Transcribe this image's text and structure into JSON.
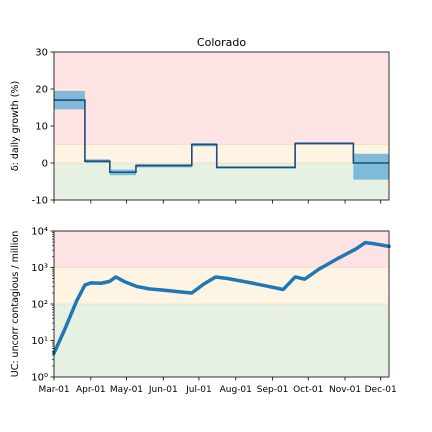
{
  "chart_data": [
    {
      "type": "line",
      "title": "Colorado",
      "ylabel": "δ: daily growth (%)",
      "ylim": [
        -10,
        30
      ],
      "yticks": [
        -10,
        0,
        10,
        20,
        30
      ],
      "x_format": "date",
      "xlim": [
        "2020-03-01",
        "2020-12-08"
      ],
      "bands": [
        {
          "name": "high",
          "from": 5,
          "to": 30,
          "color": "#fde3e3"
        },
        {
          "name": "mid",
          "from": 0,
          "to": 5,
          "color": "#fdf4e3"
        },
        {
          "name": "low",
          "from": -10,
          "to": 0,
          "color": "#e6f1e4"
        }
      ],
      "series": [
        {
          "color": "#1f77b4",
          "steps": [
            {
              "x0": "2020-03-01",
              "x1": "2020-03-27",
              "y": 17,
              "lo": 14.5,
              "hi": 19.5
            },
            {
              "x0": "2020-03-27",
              "x1": "2020-04-17",
              "y": 0.5,
              "lo": 0,
              "hi": 1
            },
            {
              "x0": "2020-04-17",
              "x1": "2020-05-09",
              "y": -2.5,
              "lo": -3.3,
              "hi": -1.8
            },
            {
              "x0": "2020-05-09",
              "x1": "2020-06-25",
              "y": -0.7,
              "lo": -1.2,
              "hi": -0.3
            },
            {
              "x0": "2020-06-25",
              "x1": "2020-07-16",
              "y": 5,
              "lo": 4.5,
              "hi": 5.4
            },
            {
              "x0": "2020-07-16",
              "x1": "2020-09-20",
              "y": -1.2,
              "lo": -1.5,
              "hi": -0.9
            },
            {
              "x0": "2020-09-20",
              "x1": "2020-11-08",
              "y": 5.3,
              "lo": 5.0,
              "hi": 5.6
            },
            {
              "x0": "2020-11-08",
              "x1": "2020-12-08",
              "y": 0,
              "lo": -4.5,
              "hi": 2.5
            }
          ]
        }
      ]
    },
    {
      "type": "line",
      "ylabel": "UC: uncorr contagious / million",
      "yscale": "log",
      "ylim": [
        1,
        10000
      ],
      "yticks": [
        1,
        10,
        100,
        1000,
        10000
      ],
      "ytick_labels": [
        "10⁰",
        "10¹",
        "10²",
        "10³",
        "10⁴"
      ],
      "x_format": "date",
      "xlim": [
        "2020-03-01",
        "2020-12-08"
      ],
      "x_tick_labels": [
        "Mar-01",
        "Apr-01",
        "May-01",
        "Jun-01",
        "Jul-01",
        "Aug-01",
        "Sep-01",
        "Oct-01",
        "Nov-01",
        "Dec-01"
      ],
      "x_ticks": [
        "2020-03-01",
        "2020-04-01",
        "2020-05-01",
        "2020-06-01",
        "2020-07-01",
        "2020-08-01",
        "2020-09-01",
        "2020-10-01",
        "2020-11-01",
        "2020-12-01"
      ],
      "bands": [
        {
          "name": "high",
          "from": 1000,
          "to": 10000,
          "color": "#fde3e3"
        },
        {
          "name": "mid",
          "from": 100,
          "to": 1000,
          "color": "#fdf4e3"
        },
        {
          "name": "low",
          "from": 1,
          "to": 100,
          "color": "#e6f1e4"
        }
      ],
      "series": [
        {
          "color": "#1f77b4",
          "points": [
            [
              "2020-03-01",
              4.5
            ],
            [
              "2020-03-10",
              20
            ],
            [
              "2020-03-20",
              120
            ],
            [
              "2020-03-27",
              330
            ],
            [
              "2020-04-01",
              380
            ],
            [
              "2020-04-10",
              370
            ],
            [
              "2020-04-17",
              420
            ],
            [
              "2020-04-22",
              550
            ],
            [
              "2020-04-30",
              400
            ],
            [
              "2020-05-10",
              300
            ],
            [
              "2020-05-20",
              260
            ],
            [
              "2020-06-01",
              240
            ],
            [
              "2020-06-15",
              215
            ],
            [
              "2020-06-25",
              200
            ],
            [
              "2020-07-05",
              350
            ],
            [
              "2020-07-15",
              550
            ],
            [
              "2020-07-25",
              500
            ],
            [
              "2020-08-10",
              400
            ],
            [
              "2020-08-25",
              320
            ],
            [
              "2020-09-10",
              250
            ],
            [
              "2020-09-20",
              550
            ],
            [
              "2020-09-28",
              480
            ],
            [
              "2020-10-10",
              900
            ],
            [
              "2020-10-25",
              1700
            ],
            [
              "2020-11-10",
              3200
            ],
            [
              "2020-11-18",
              4800
            ],
            [
              "2020-11-25",
              4500
            ],
            [
              "2020-12-08",
              3800
            ]
          ]
        }
      ]
    }
  ]
}
